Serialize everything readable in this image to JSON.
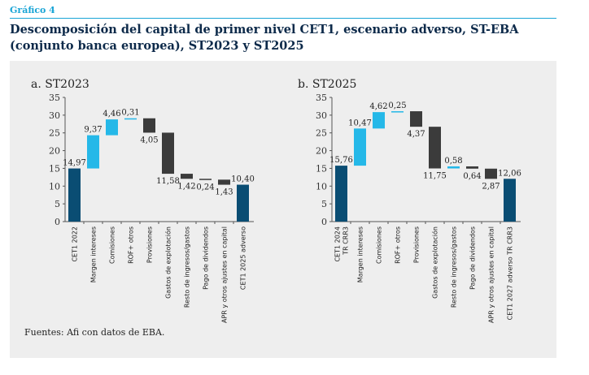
{
  "header": {
    "label": "Gráfico 4",
    "title_line1": "Descomposición del capital de primer nivel CET1, escenario adverso, ST-EBA",
    "title_line2": "(conjunto banca europea), ST2023 y ST2025"
  },
  "source": "Fuentes: Afi con datos de EBA.",
  "colors": {
    "total": "#0a4d73",
    "increase": "#25b8e8",
    "decrease": "#3b3b3b",
    "axis": "#555555"
  },
  "chart_data": [
    {
      "type": "bar",
      "subtype": "waterfall",
      "title": "a. ST2023",
      "ylim": [
        0,
        35
      ],
      "yticks": [
        0,
        5,
        10,
        15,
        20,
        25,
        30,
        35
      ],
      "grid": false,
      "categories": [
        "CET1 2022",
        "Margen intereses",
        "Comisiones",
        "ROF+ otros",
        "Provisiones",
        "Gastos de explotación",
        "Resto de ingresos/gastos",
        "Pago de dividendos",
        "APR y otros ajustes en capital",
        "CET1 2025 adverso"
      ],
      "category_lines": [
        [
          "CET1 2022"
        ],
        [
          "Margen intereses"
        ],
        [
          "Comisiones"
        ],
        [
          "ROF+ otros"
        ],
        [
          "Provisiones"
        ],
        [
          "Gastos de explotación"
        ],
        [
          "Resto de ingresos/gastos"
        ],
        [
          "Pago de dividendos"
        ],
        [
          "APR y otros ajustes en capital"
        ],
        [
          "CET1 2025 adverso"
        ]
      ],
      "bars": [
        {
          "kind": "total",
          "value": 14.97,
          "label": "14,97"
        },
        {
          "kind": "increase",
          "value": 9.37,
          "label": "9,37"
        },
        {
          "kind": "increase",
          "value": 4.46,
          "label": "4,46"
        },
        {
          "kind": "increase",
          "value": 0.31,
          "label": "0,31"
        },
        {
          "kind": "decrease",
          "value": 4.05,
          "label": "4,05"
        },
        {
          "kind": "decrease",
          "value": 11.58,
          "label": "11,58"
        },
        {
          "kind": "decrease",
          "value": 1.42,
          "label": "1,42"
        },
        {
          "kind": "decrease",
          "value": 0.24,
          "label": "0,24"
        },
        {
          "kind": "decrease",
          "value": 1.43,
          "label": "1,43"
        },
        {
          "kind": "total",
          "value": 10.4,
          "label": "10,40"
        }
      ]
    },
    {
      "type": "bar",
      "subtype": "waterfall",
      "title": "b. ST2025",
      "ylim": [
        0,
        35
      ],
      "yticks": [
        0,
        5,
        10,
        15,
        20,
        25,
        30,
        35
      ],
      "grid": false,
      "categories": [
        "CET1 2024 TR CRR3",
        "Margen intereses",
        "Comisiones",
        "ROF+ otros",
        "Provisiones",
        "Gastos de explotación",
        "Resto de ingresos/gastos",
        "Pago de dividendos",
        "APR y otros ajustes en capital",
        "CET1 2027 adverso TR CRR3"
      ],
      "category_lines": [
        [
          "CET1 2024",
          "TR CRR3"
        ],
        [
          "Margen intereses"
        ],
        [
          "Comisiones"
        ],
        [
          "ROF+ otros"
        ],
        [
          "Provisiones"
        ],
        [
          "Gastos de explotación"
        ],
        [
          "Resto de ingresos/gastos"
        ],
        [
          "Pago de dividendos"
        ],
        [
          "APR y otros ajustes en capital"
        ],
        [
          "CET1 2027 adverso TR CRR3"
        ]
      ],
      "bars": [
        {
          "kind": "total",
          "value": 15.76,
          "label": "15,76"
        },
        {
          "kind": "increase",
          "value": 10.47,
          "label": "10,47"
        },
        {
          "kind": "increase",
          "value": 4.62,
          "label": "4,62"
        },
        {
          "kind": "increase",
          "value": 0.25,
          "label": "0,25"
        },
        {
          "kind": "decrease",
          "value": 4.37,
          "label": "4,37"
        },
        {
          "kind": "decrease",
          "value": 11.75,
          "label": "11,75"
        },
        {
          "kind": "increase",
          "value": 0.58,
          "label": "0,58"
        },
        {
          "kind": "decrease",
          "value": 0.64,
          "label": "0,64"
        },
        {
          "kind": "decrease",
          "value": 2.87,
          "label": "2,87"
        },
        {
          "kind": "total",
          "value": 12.06,
          "label": "12,06"
        }
      ]
    }
  ]
}
